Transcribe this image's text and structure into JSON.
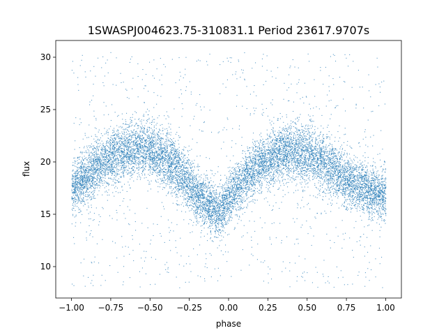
{
  "chart_data": {
    "type": "scatter",
    "title": "1SWASPJ004623.75-310831.1 Period 23617.9707s",
    "xlabel": "phase",
    "ylabel": "flux",
    "xlim": [
      -1.1,
      1.1
    ],
    "ylim": [
      7,
      31.6
    ],
    "x_ticks": [
      -1.0,
      -0.75,
      -0.5,
      -0.25,
      0.0,
      0.25,
      0.5,
      0.75,
      1.0
    ],
    "x_tick_labels": [
      "−1.00",
      "−0.75",
      "−0.50",
      "−0.25",
      "0.00",
      "0.25",
      "0.50",
      "0.75",
      "1.00"
    ],
    "y_ticks": [
      10,
      15,
      20,
      25,
      30
    ],
    "y_tick_labels": [
      "10",
      "15",
      "20",
      "25",
      "30"
    ],
    "grid": false,
    "legend": "none",
    "marker_color": "#1f77b4",
    "series": [
      {
        "phase_range": [
          -1.0,
          1.0
        ],
        "envelope": {
          "x": [
            -1.0,
            -0.9,
            -0.8,
            -0.7,
            -0.6,
            -0.5,
            -0.4,
            -0.3,
            -0.2,
            -0.1,
            -0.05,
            0.0,
            0.1,
            0.2,
            0.3,
            0.4,
            0.5,
            0.6,
            0.7,
            0.8,
            0.9,
            1.0
          ],
          "center": [
            17.5,
            18.7,
            20.0,
            20.9,
            21.3,
            21.1,
            20.3,
            18.8,
            16.9,
            15.6,
            15.2,
            16.6,
            18.3,
            19.8,
            20.7,
            21.1,
            20.8,
            20.0,
            18.9,
            17.9,
            17.2,
            16.9
          ],
          "core_halfwidth": [
            2.2,
            2.3,
            2.3,
            2.4,
            2.4,
            2.4,
            2.4,
            2.3,
            2.3,
            2.2,
            2.2,
            2.2,
            2.3,
            2.3,
            2.4,
            2.4,
            2.4,
            2.4,
            2.3,
            2.3,
            2.2,
            2.2
          ]
        },
        "outlier_y_range": [
          8,
          30.5
        ]
      }
    ]
  }
}
